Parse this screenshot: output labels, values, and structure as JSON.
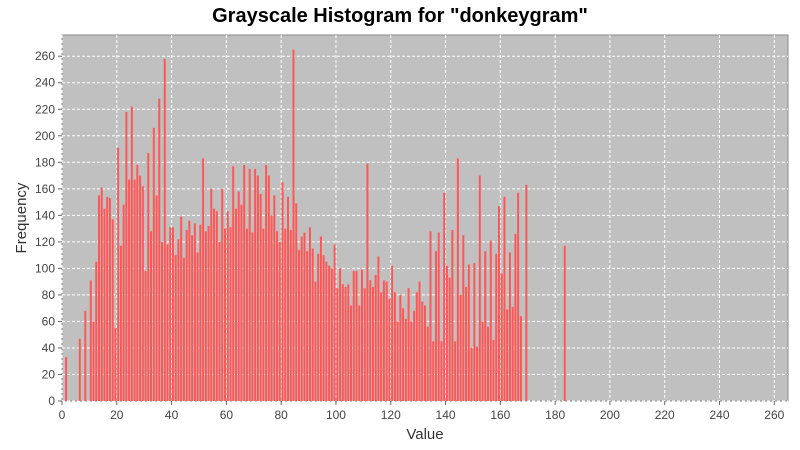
{
  "chart_data": {
    "type": "bar",
    "title": "Grayscale Histogram for \"donkeygram\"",
    "xlabel": "Value",
    "ylabel": "Frequency",
    "xlim": [
      0,
      265
    ],
    "ylim": [
      0,
      276
    ],
    "xticks": [
      0,
      20,
      40,
      60,
      80,
      100,
      120,
      140,
      160,
      180,
      200,
      220,
      240,
      260
    ],
    "yticks": [
      0,
      20,
      40,
      60,
      80,
      100,
      120,
      140,
      160,
      180,
      200,
      220,
      240,
      260
    ],
    "grid": true,
    "legend": "none",
    "colors": {
      "bar": "#ff5555",
      "plot_background": "#c0c0c0",
      "grid": "#ffffff"
    },
    "bars": [
      [
        1,
        33
      ],
      [
        6,
        47
      ],
      [
        8,
        68
      ],
      [
        10,
        91
      ],
      [
        11,
        60
      ],
      [
        12,
        105
      ],
      [
        13,
        155
      ],
      [
        14,
        161
      ],
      [
        15,
        145
      ],
      [
        16,
        154
      ],
      [
        17,
        153
      ],
      [
        18,
        137
      ],
      [
        19,
        55
      ],
      [
        20,
        191
      ],
      [
        21,
        117
      ],
      [
        22,
        148
      ],
      [
        23,
        218
      ],
      [
        24,
        167
      ],
      [
        25,
        222
      ],
      [
        26,
        167
      ],
      [
        27,
        178
      ],
      [
        28,
        170
      ],
      [
        29,
        162
      ],
      [
        30,
        98
      ],
      [
        31,
        187
      ],
      [
        32,
        128
      ],
      [
        33,
        206
      ],
      [
        34,
        155
      ],
      [
        35,
        228
      ],
      [
        36,
        120
      ],
      [
        37,
        258
      ],
      [
        38,
        118
      ],
      [
        39,
        131
      ],
      [
        40,
        131
      ],
      [
        41,
        110
      ],
      [
        42,
        122
      ],
      [
        43,
        139
      ],
      [
        44,
        108
      ],
      [
        45,
        129
      ],
      [
        46,
        136
      ],
      [
        47,
        125
      ],
      [
        48,
        134
      ],
      [
        49,
        112
      ],
      [
        50,
        133
      ],
      [
        51,
        183
      ],
      [
        52,
        128
      ],
      [
        53,
        132
      ],
      [
        54,
        160
      ],
      [
        55,
        145
      ],
      [
        56,
        143
      ],
      [
        57,
        120
      ],
      [
        58,
        160
      ],
      [
        59,
        130
      ],
      [
        60,
        143
      ],
      [
        61,
        131
      ],
      [
        62,
        177
      ],
      [
        63,
        145
      ],
      [
        64,
        158
      ],
      [
        65,
        148
      ],
      [
        66,
        178
      ],
      [
        67,
        130
      ],
      [
        68,
        175
      ],
      [
        69,
        127
      ],
      [
        70,
        175
      ],
      [
        71,
        170
      ],
      [
        72,
        156
      ],
      [
        73,
        130
      ],
      [
        74,
        178
      ],
      [
        75,
        170
      ],
      [
        76,
        140
      ],
      [
        77,
        155
      ],
      [
        78,
        128
      ],
      [
        79,
        120
      ],
      [
        80,
        165
      ],
      [
        81,
        130
      ],
      [
        82,
        154
      ],
      [
        83,
        129
      ],
      [
        84,
        265
      ],
      [
        85,
        149
      ],
      [
        86,
        114
      ],
      [
        87,
        124
      ],
      [
        88,
        127
      ],
      [
        89,
        113
      ],
      [
        90,
        131
      ],
      [
        91,
        115
      ],
      [
        92,
        90
      ],
      [
        93,
        111
      ],
      [
        94,
        124
      ],
      [
        95,
        110
      ],
      [
        96,
        105
      ],
      [
        97,
        102
      ],
      [
        98,
        100
      ],
      [
        99,
        118
      ],
      [
        100,
        85
      ],
      [
        101,
        100
      ],
      [
        102,
        88
      ],
      [
        103,
        86
      ],
      [
        104,
        88
      ],
      [
        105,
        72
      ],
      [
        106,
        98
      ],
      [
        107,
        98
      ],
      [
        108,
        72
      ],
      [
        109,
        99
      ],
      [
        110,
        85
      ],
      [
        111,
        179
      ],
      [
        112,
        91
      ],
      [
        113,
        86
      ],
      [
        114,
        95
      ],
      [
        115,
        109
      ],
      [
        116,
        82
      ],
      [
        117,
        91
      ],
      [
        118,
        90
      ],
      [
        119,
        77
      ],
      [
        120,
        102
      ],
      [
        121,
        82
      ],
      [
        122,
        60
      ],
      [
        123,
        80
      ],
      [
        124,
        70
      ],
      [
        125,
        62
      ],
      [
        126,
        85
      ],
      [
        127,
        60
      ],
      [
        128,
        68
      ],
      [
        129,
        82
      ],
      [
        130,
        90
      ],
      [
        131,
        75
      ],
      [
        132,
        72
      ],
      [
        133,
        56
      ],
      [
        134,
        128
      ],
      [
        135,
        45
      ],
      [
        136,
        113
      ],
      [
        137,
        127
      ],
      [
        138,
        45
      ],
      [
        139,
        157
      ],
      [
        140,
        102
      ],
      [
        141,
        93
      ],
      [
        142,
        129
      ],
      [
        143,
        45
      ],
      [
        144,
        183
      ],
      [
        145,
        80
      ],
      [
        146,
        125
      ],
      [
        147,
        86
      ],
      [
        148,
        103
      ],
      [
        149,
        40
      ],
      [
        150,
        104
      ],
      [
        151,
        41
      ],
      [
        152,
        170
      ],
      [
        153,
        60
      ],
      [
        154,
        113
      ],
      [
        155,
        56
      ],
      [
        156,
        121
      ],
      [
        157,
        46
      ],
      [
        158,
        111
      ],
      [
        159,
        147
      ],
      [
        160,
        96
      ],
      [
        161,
        154
      ],
      [
        162,
        69
      ],
      [
        163,
        112
      ],
      [
        164,
        71
      ],
      [
        165,
        126
      ],
      [
        166,
        157
      ],
      [
        167,
        64
      ],
      [
        169,
        163
      ],
      [
        183,
        117
      ]
    ]
  }
}
